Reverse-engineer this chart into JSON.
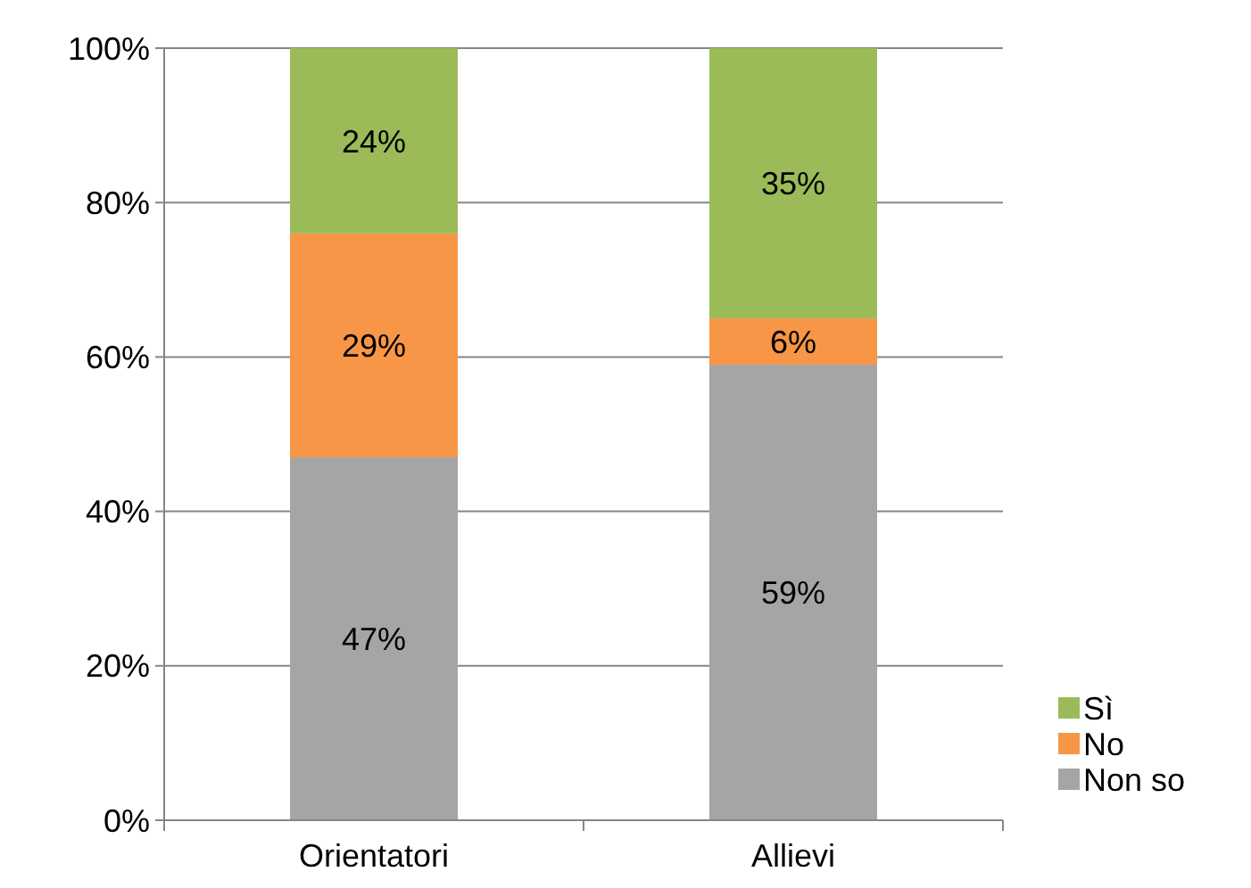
{
  "chart_data": {
    "type": "bar",
    "stacked": true,
    "categories": [
      "Orientatori",
      "Allievi"
    ],
    "series": [
      {
        "name": "Non so",
        "color": "#a5a5a5",
        "values": [
          47,
          59
        ],
        "value_labels": [
          "47%",
          "59%"
        ]
      },
      {
        "name": "No",
        "color": "#f79646",
        "values": [
          29,
          6
        ],
        "value_labels": [
          "29%",
          "6%"
        ]
      },
      {
        "name": "Sì",
        "color": "#9bbb59",
        "values": [
          24,
          35
        ],
        "value_labels": [
          "24%",
          "35%"
        ]
      }
    ],
    "ylim": [
      0,
      100
    ],
    "yticks": [
      {
        "value": 0,
        "label": "0%"
      },
      {
        "value": 20,
        "label": "20%"
      },
      {
        "value": 40,
        "label": "40%"
      },
      {
        "value": 60,
        "label": "60%"
      },
      {
        "value": 80,
        "label": "80%"
      },
      {
        "value": 100,
        "label": "100%"
      }
    ],
    "grid": "y",
    "legend": "right"
  }
}
